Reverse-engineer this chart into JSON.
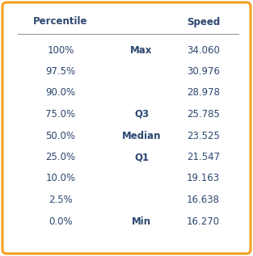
{
  "headers_left": "Percentile",
  "headers_right": "Speed",
  "rows": [
    {
      "percentile": "100%",
      "label": "Max",
      "speed": "34.060"
    },
    {
      "percentile": "97.5%",
      "label": "",
      "speed": "30.976"
    },
    {
      "percentile": "90.0%",
      "label": "",
      "speed": "28.978"
    },
    {
      "percentile": "75.0%",
      "label": "Q3",
      "speed": "25.785"
    },
    {
      "percentile": "50.0%",
      "label": "Median",
      "speed": "23.525"
    },
    {
      "percentile": "25.0%",
      "label": "Q1",
      "speed": "21.547"
    },
    {
      "percentile": "10.0%",
      "label": "",
      "speed": "19.163"
    },
    {
      "percentile": "2.5%",
      "label": "",
      "speed": "16.638"
    },
    {
      "percentile": "0.0%",
      "label": "Min",
      "speed": "16.270"
    }
  ],
  "header_color": "#2c4770",
  "data_color": "#2c4770",
  "border_color": "#f5a020",
  "background_color": "#ffffff",
  "header_fontsize": 8.5,
  "data_fontsize": 8.5,
  "border_linewidth": 2.2
}
